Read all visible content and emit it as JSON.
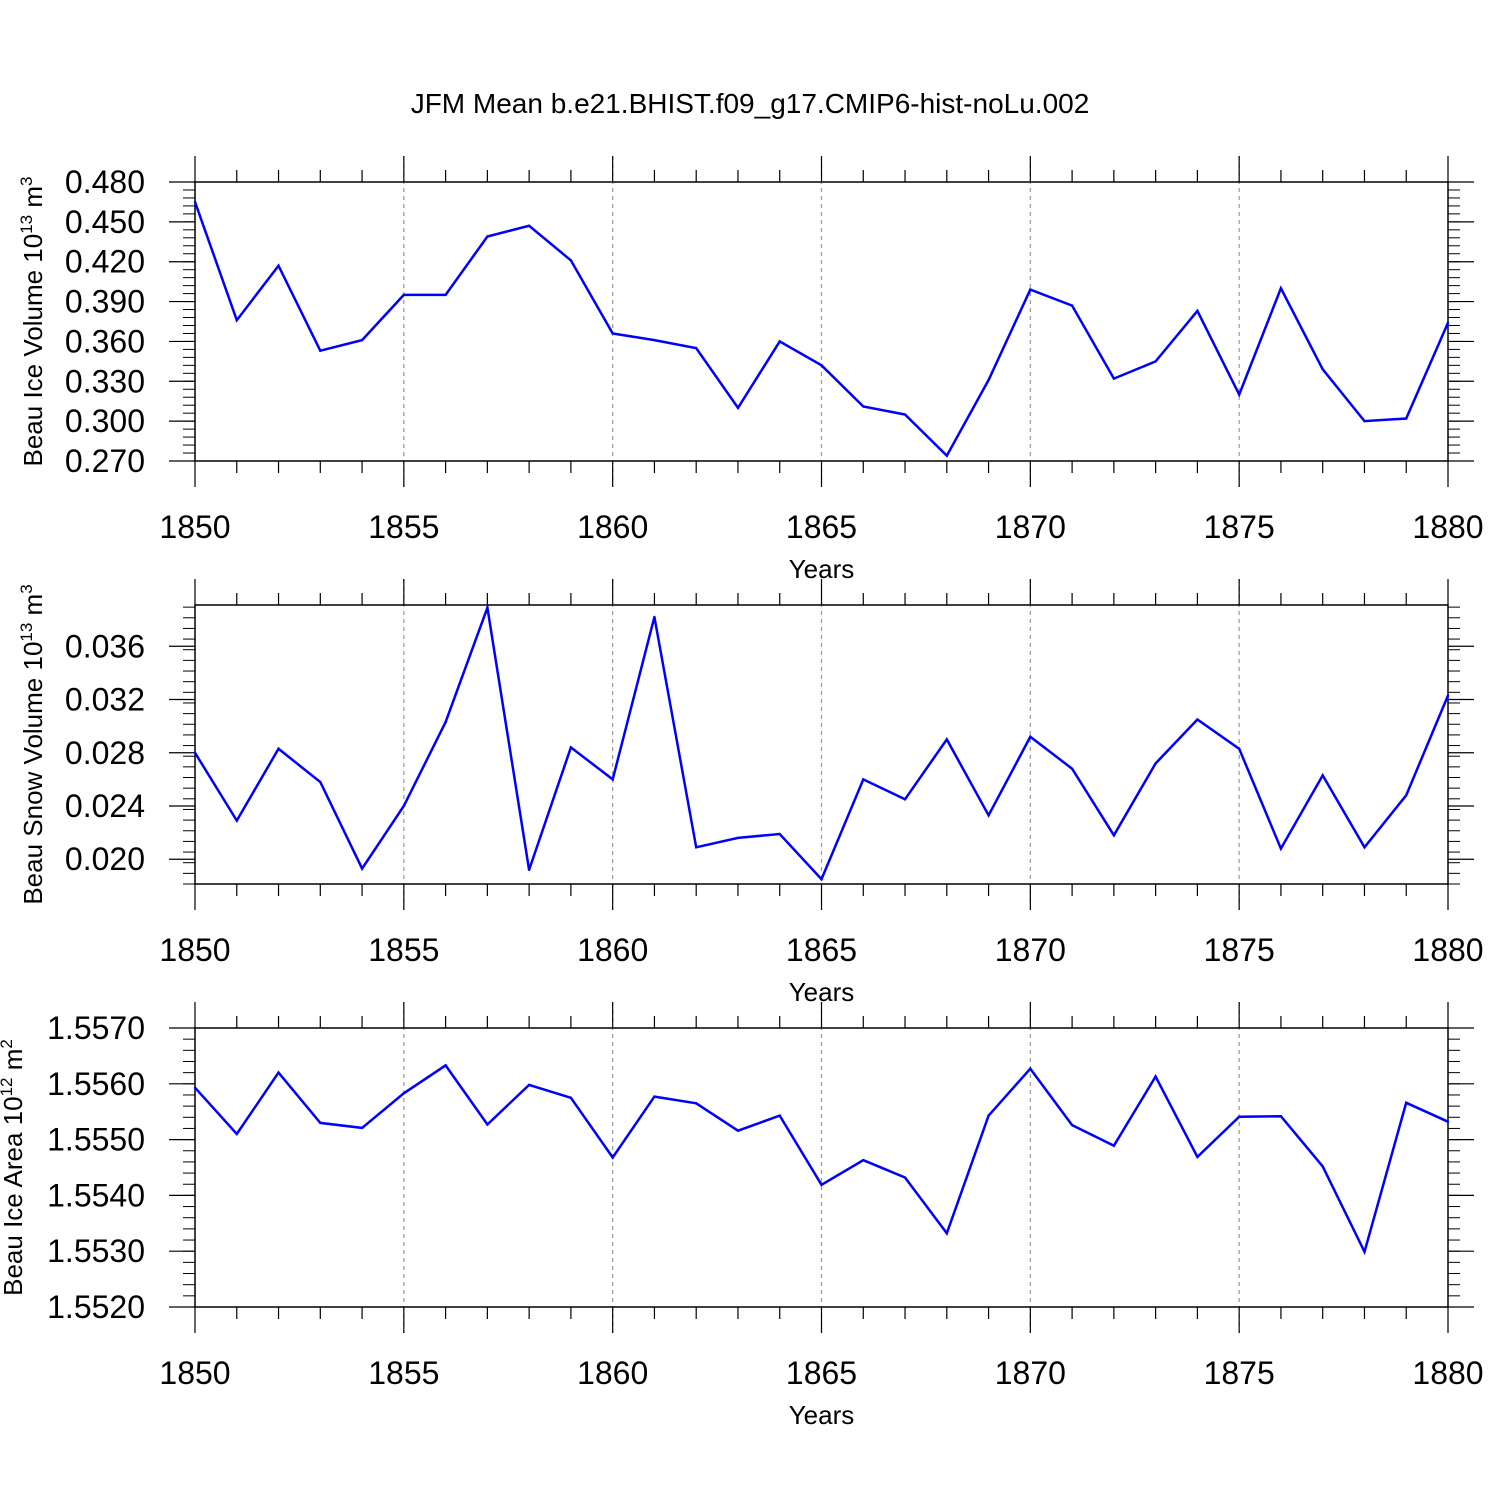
{
  "title": "JFM Mean b.e21.BHIST.f09_g17.CMIP6-hist-noLu.002",
  "line_color": "#0000ff",
  "chart_data": [
    {
      "type": "line",
      "ylabel": "Beau Ice Volume 10",
      "ylabel_exp": "13",
      "ylabel_unit": " m",
      "ylabel_unit_exp": "3",
      "xlabel": "Years",
      "xlim": [
        1850,
        1880
      ],
      "ylim": [
        0.27,
        0.48
      ],
      "x_ticks": [
        "1850",
        "1855",
        "1860",
        "1865",
        "1870",
        "1875",
        "1880"
      ],
      "y_ticks": [
        "0.270",
        "0.300",
        "0.330",
        "0.360",
        "0.390",
        "0.420",
        "0.450",
        "0.480"
      ],
      "x": [
        1850,
        1851,
        1852,
        1853,
        1854,
        1855,
        1856,
        1857,
        1858,
        1859,
        1860,
        1861,
        1862,
        1863,
        1864,
        1865,
        1866,
        1867,
        1868,
        1869,
        1870,
        1871,
        1872,
        1873,
        1874,
        1875,
        1876,
        1877,
        1878,
        1879,
        1880
      ],
      "values": [
        0.465,
        0.376,
        0.417,
        0.353,
        0.361,
        0.395,
        0.395,
        0.439,
        0.447,
        0.421,
        0.366,
        0.361,
        0.355,
        0.31,
        0.36,
        0.342,
        0.311,
        0.305,
        0.274,
        0.331,
        0.399,
        0.387,
        0.332,
        0.345,
        0.383,
        0.32,
        0.4,
        0.339,
        0.3,
        0.302,
        0.374
      ]
    },
    {
      "type": "line",
      "ylabel": "Beau Snow Volume 10",
      "ylabel_exp": "13",
      "ylabel_unit": " m",
      "ylabel_unit_exp": "3",
      "xlabel": "Years",
      "xlim": [
        1850,
        1880
      ],
      "ylim": [
        0.018,
        0.039
      ],
      "x_ticks": [
        "1850",
        "1855",
        "1860",
        "1865",
        "1870",
        "1875",
        "1880"
      ],
      "y_ticks": [
        "0.020",
        "0.024",
        "0.028",
        "0.032",
        "0.036"
      ],
      "x": [
        1850,
        1851,
        1852,
        1853,
        1854,
        1855,
        1856,
        1857,
        1858,
        1859,
        1860,
        1861,
        1862,
        1863,
        1864,
        1865,
        1866,
        1867,
        1868,
        1869,
        1870,
        1871,
        1872,
        1873,
        1874,
        1875,
        1876,
        1877,
        1878,
        1879,
        1880
      ],
      "values": [
        0.028,
        0.0229,
        0.0283,
        0.0258,
        0.0193,
        0.024,
        0.0303,
        0.0389,
        0.0192,
        0.0284,
        0.026,
        0.0382,
        0.0209,
        0.0216,
        0.0219,
        0.0185,
        0.026,
        0.0245,
        0.029,
        0.0233,
        0.0292,
        0.0268,
        0.0218,
        0.0272,
        0.0305,
        0.0283,
        0.0208,
        0.0263,
        0.0209,
        0.0248,
        0.0323
      ]
    },
    {
      "type": "line",
      "ylabel": "Beau Ice Area 10",
      "ylabel_exp": "12",
      "ylabel_unit": " m",
      "ylabel_unit_exp": "2",
      "xlabel": "Years",
      "xlim": [
        1850,
        1880
      ],
      "ylim": [
        1.552,
        1.557
      ],
      "x_ticks": [
        "1850",
        "1855",
        "1860",
        "1865",
        "1870",
        "1875",
        "1880"
      ],
      "y_ticks": [
        "1.5520",
        "1.5530",
        "1.5540",
        "1.5550",
        "1.5560",
        "1.5570"
      ],
      "x": [
        1850,
        1851,
        1852,
        1853,
        1854,
        1855,
        1856,
        1857,
        1858,
        1859,
        1860,
        1861,
        1862,
        1863,
        1864,
        1865,
        1866,
        1867,
        1868,
        1869,
        1870,
        1871,
        1872,
        1873,
        1874,
        1875,
        1876,
        1877,
        1878,
        1879,
        1880
      ],
      "values": [
        1.55593,
        1.5551,
        1.5562,
        1.5553,
        1.55521,
        1.55583,
        1.55633,
        1.55527,
        1.55598,
        1.55575,
        1.55468,
        1.55577,
        1.55565,
        1.55516,
        1.55543,
        1.55419,
        1.55463,
        1.55432,
        1.55332,
        1.55543,
        1.55627,
        1.55526,
        1.55489,
        1.55613,
        1.55469,
        1.55541,
        1.55542,
        1.55452,
        1.55299,
        1.55566,
        1.55532
      ]
    }
  ]
}
